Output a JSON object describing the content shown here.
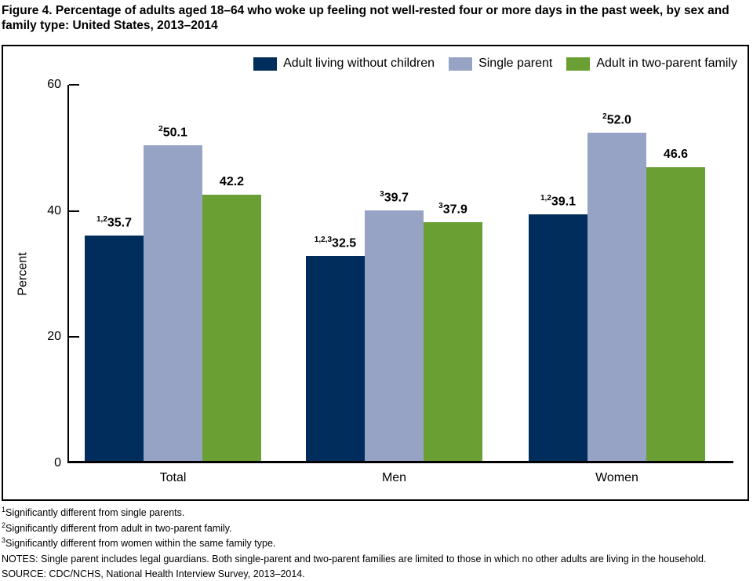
{
  "title": "Figure 4. Percentage of adults aged 18–64 who woke up feeling not well-rested four or more days in the past week, by sex and family type: United States, 2013–2014",
  "colors": {
    "navy": "#002d5c",
    "blue_gray": "#97a3c4",
    "green": "#699f33"
  },
  "chart_data": {
    "type": "bar",
    "categories": [
      "Total",
      "Men",
      "Women"
    ],
    "series": [
      {
        "name": "Adult living without children",
        "color_key": "navy",
        "values": [
          35.7,
          32.5,
          39.1
        ],
        "superscripts": [
          "1,2",
          "1,2,3",
          "1,2"
        ]
      },
      {
        "name": "Single parent",
        "color_key": "blue_gray",
        "values": [
          50.1,
          39.7,
          52.0
        ],
        "superscripts": [
          "2",
          "3",
          "2"
        ]
      },
      {
        "name": "Adult in two-parent family",
        "color_key": "green",
        "values": [
          42.2,
          37.9,
          46.6
        ],
        "superscripts": [
          "",
          "3",
          ""
        ]
      }
    ],
    "ylabel": "Percent",
    "yticks": [
      0,
      20,
      40,
      60
    ],
    "ylim": [
      0,
      60
    ],
    "grid": false,
    "legend_position": "top"
  },
  "footnotes": [
    {
      "sup": "1",
      "text": "Significantly different from single parents."
    },
    {
      "sup": "2",
      "text": "Significantly different from adult in two-parent family."
    },
    {
      "sup": "3",
      "text": "Significantly different from women within the same family type."
    },
    {
      "sup": "",
      "text": "NOTES: Single parent includes legal guardians. Both single-parent and two-parent families are limited to those in which no other adults are living in the household."
    },
    {
      "sup": "",
      "text": "SOURCE: CDC/NCHS, National Health Interview Survey, 2013–2014."
    }
  ]
}
